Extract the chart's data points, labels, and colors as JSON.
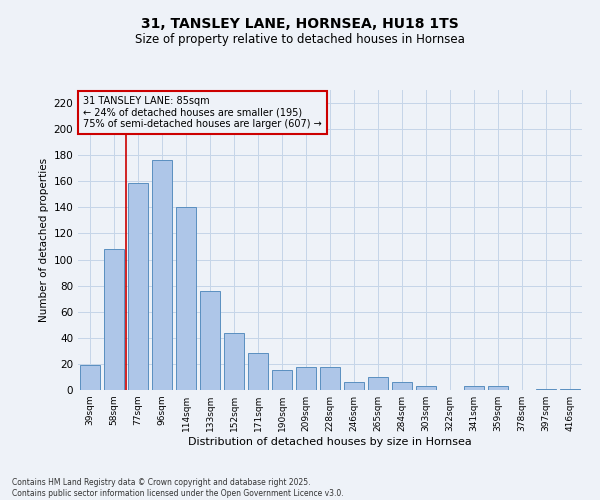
{
  "title": "31, TANSLEY LANE, HORNSEA, HU18 1TS",
  "subtitle": "Size of property relative to detached houses in Hornsea",
  "xlabel": "Distribution of detached houses by size in Hornsea",
  "ylabel": "Number of detached properties",
  "categories": [
    "39sqm",
    "58sqm",
    "77sqm",
    "96sqm",
    "114sqm",
    "133sqm",
    "152sqm",
    "171sqm",
    "190sqm",
    "209sqm",
    "228sqm",
    "246sqm",
    "265sqm",
    "284sqm",
    "303sqm",
    "322sqm",
    "341sqm",
    "359sqm",
    "378sqm",
    "397sqm",
    "416sqm"
  ],
  "values": [
    19,
    108,
    159,
    176,
    140,
    76,
    44,
    28,
    15,
    18,
    18,
    6,
    10,
    6,
    3,
    0,
    3,
    3,
    0,
    1,
    1
  ],
  "bar_color": "#aec6e8",
  "bar_edge_color": "#5a8fc0",
  "grid_color": "#c5d5e8",
  "background_color": "#eef2f8",
  "vline_color": "#cc0000",
  "annotation_text": "31 TANSLEY LANE: 85sqm\n← 24% of detached houses are smaller (195)\n75% of semi-detached houses are larger (607) →",
  "annotation_box_color": "#cc0000",
  "ylim": [
    0,
    230
  ],
  "yticks": [
    0,
    20,
    40,
    60,
    80,
    100,
    120,
    140,
    160,
    180,
    200,
    220
  ],
  "footer_line1": "Contains HM Land Registry data © Crown copyright and database right 2025.",
  "footer_line2": "Contains public sector information licensed under the Open Government Licence v3.0."
}
